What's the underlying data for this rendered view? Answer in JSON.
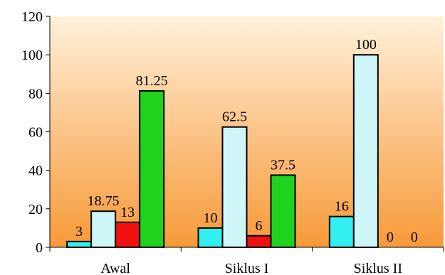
{
  "chart_data": {
    "type": "bar",
    "title": "",
    "xlabel": "",
    "ylabel": "",
    "categories": [
      "Awal",
      "Siklus I",
      "Siklus II"
    ],
    "ylim": [
      0,
      120
    ],
    "yticks": [
      0,
      20,
      40,
      60,
      80,
      100,
      120
    ],
    "grid": false,
    "legend": "none",
    "background": "orange-gradient",
    "series": [
      {
        "color": "#33f0f0",
        "values": [
          3,
          10,
          16
        ],
        "labels": [
          "3",
          "10",
          "16"
        ]
      },
      {
        "color": "#cff6f9",
        "values": [
          18.75,
          62.5,
          100
        ],
        "labels": [
          "18.75",
          "62.5",
          "100"
        ]
      },
      {
        "color": "#f01010",
        "values": [
          13,
          6,
          0
        ],
        "labels": [
          "13",
          "6",
          "0"
        ]
      },
      {
        "color": "#1ed21e",
        "values": [
          81.25,
          37.5,
          0
        ],
        "labels": [
          "81.25",
          "37.5",
          "0"
        ]
      }
    ]
  }
}
